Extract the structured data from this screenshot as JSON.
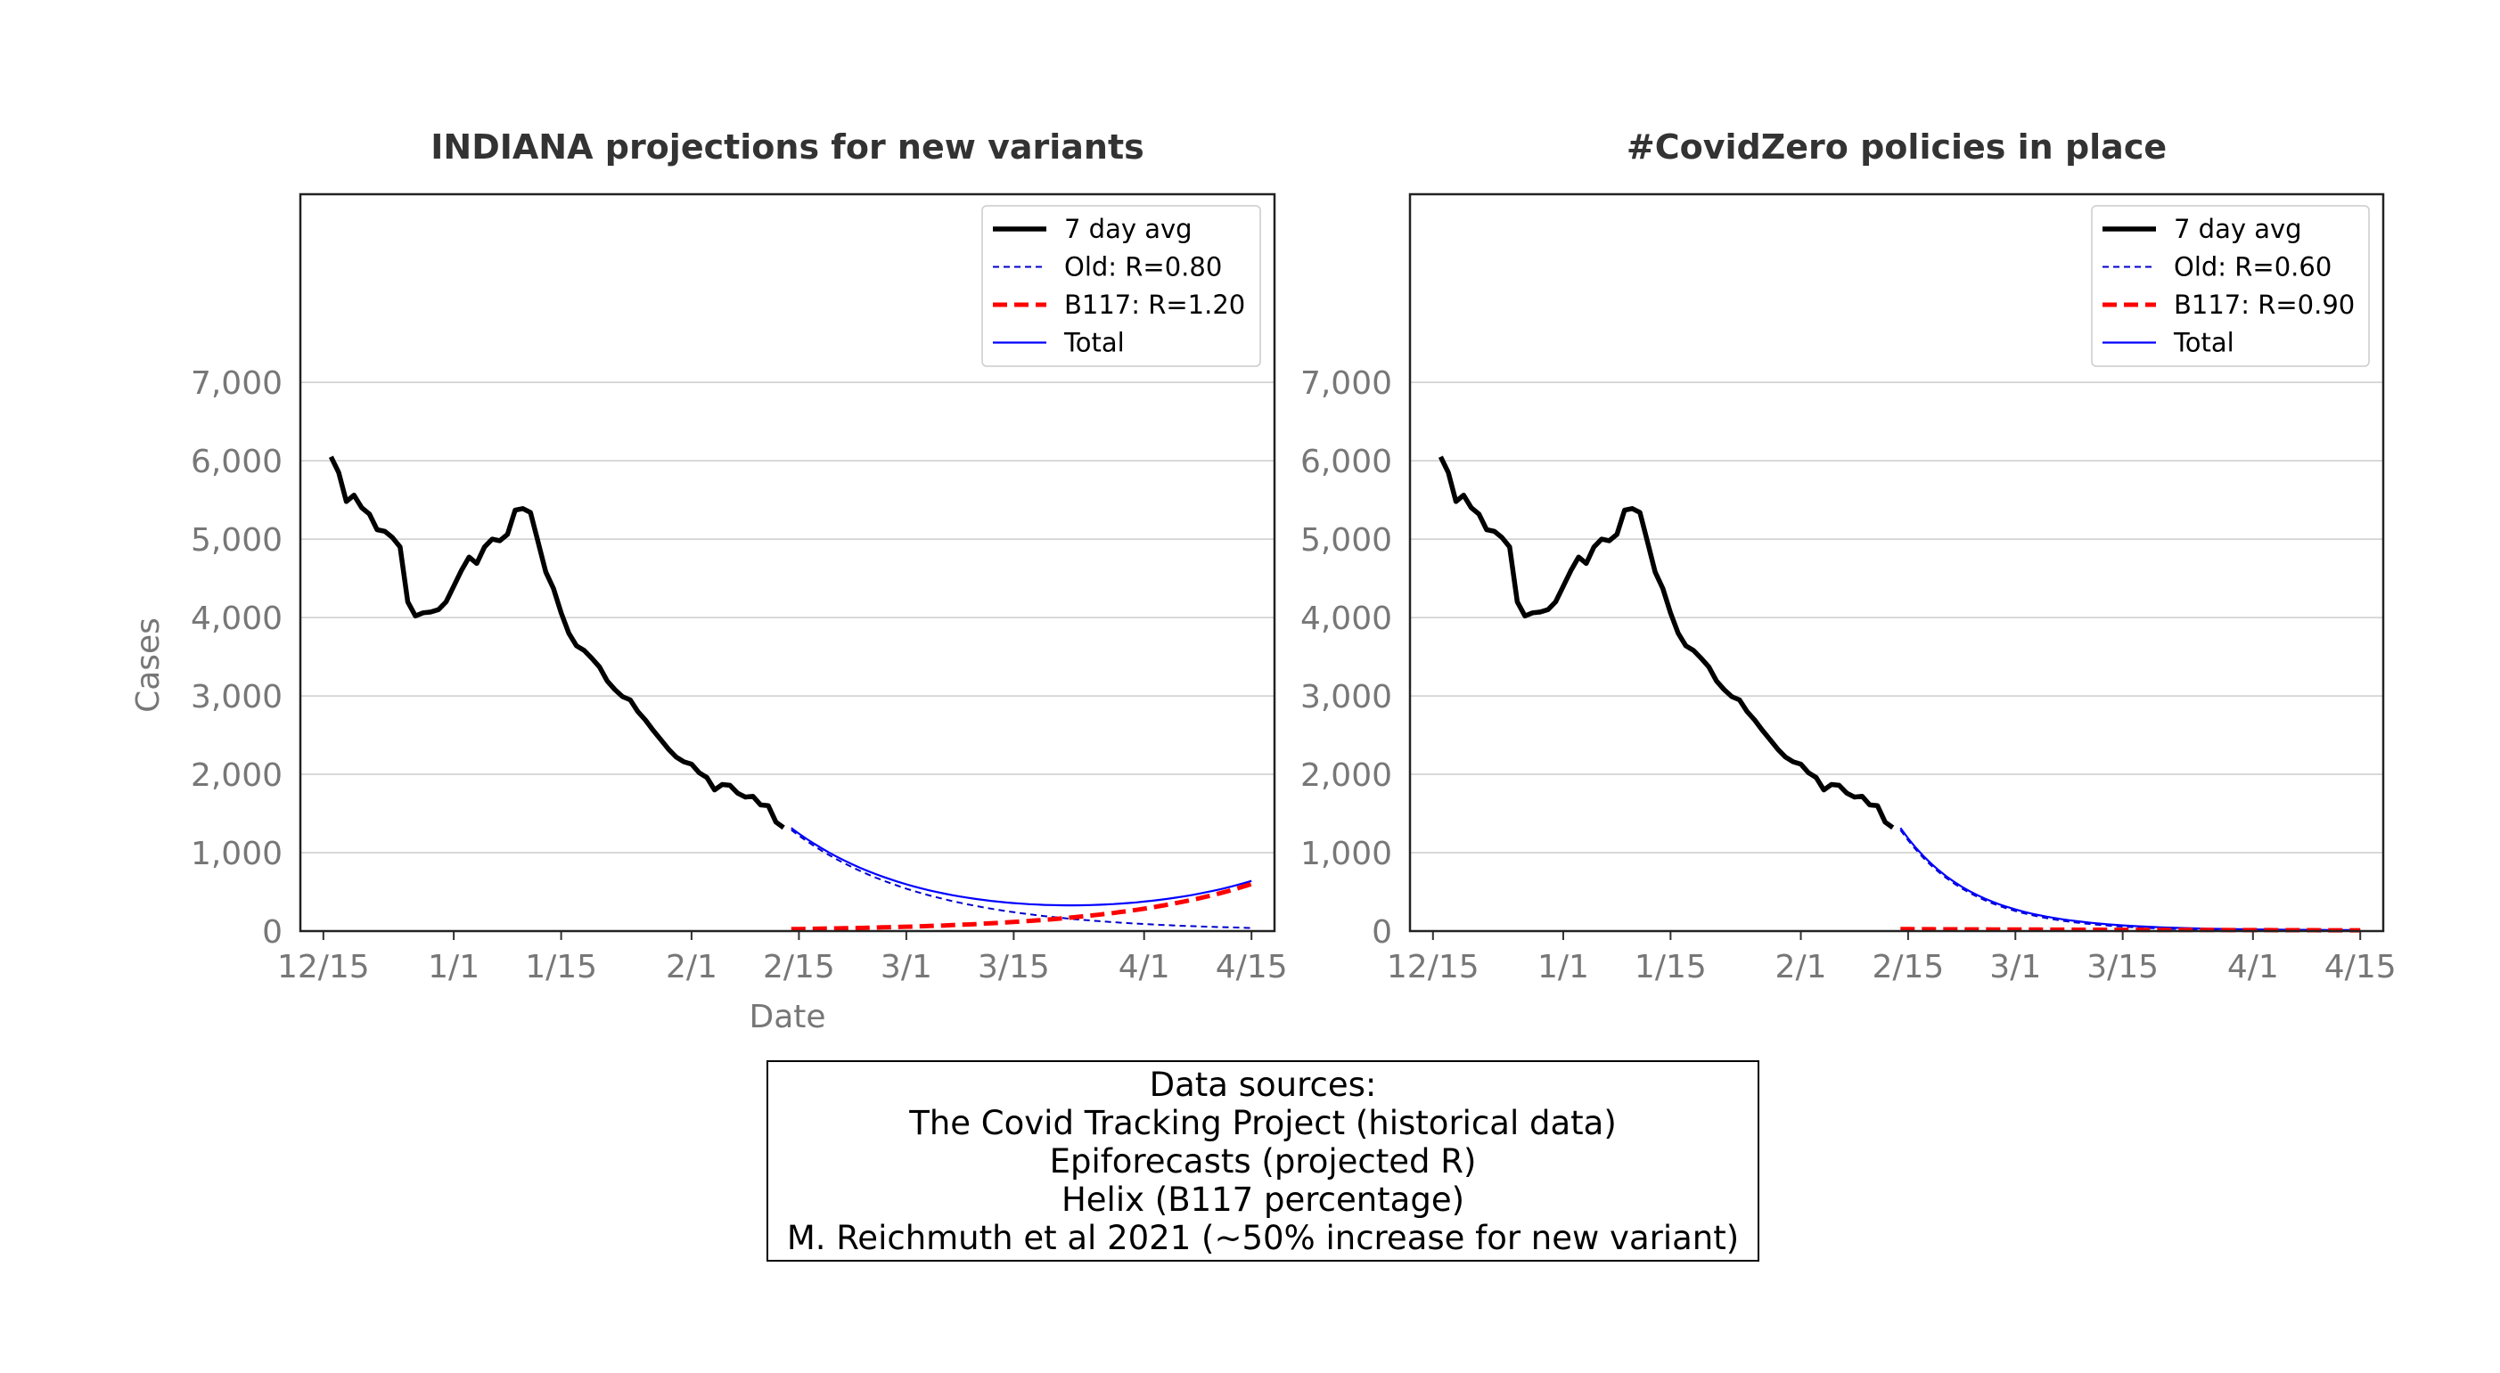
{
  "chart_data": [
    {
      "type": "line",
      "title": "INDIANA projections for new variants",
      "xlabel": "Date",
      "ylabel": "Cases",
      "xlim": [
        "2020-12-12",
        "2021-04-18"
      ],
      "ylim": [
        0,
        9400
      ],
      "x_ticks": [
        "12/15",
        "1/1",
        "1/15",
        "2/1",
        "2/15",
        "3/1",
        "3/15",
        "4/1",
        "4/15"
      ],
      "x_tick_dates": [
        "2020-12-15",
        "2021-01-01",
        "2021-01-15",
        "2021-02-01",
        "2021-02-15",
        "2021-03-01",
        "2021-03-15",
        "2021-04-01",
        "2021-04-15"
      ],
      "y_ticks": [
        "0",
        "1,000",
        "2,000",
        "3,000",
        "4,000",
        "5,000",
        "6,000",
        "7,000"
      ],
      "y_tick_values": [
        0,
        1000,
        2000,
        3000,
        4000,
        5000,
        6000,
        7000
      ],
      "grid": "horizontal",
      "legend_position": "top-right",
      "series": [
        {
          "name": "7 day avg",
          "color": "#000000",
          "style": "solid-thick",
          "points": [
            [
              "2020-12-16",
              6050
            ],
            [
              "2020-12-17",
              5850
            ],
            [
              "2020-12-18",
              5480
            ],
            [
              "2020-12-19",
              5560
            ],
            [
              "2020-12-20",
              5400
            ],
            [
              "2020-12-21",
              5320
            ],
            [
              "2020-12-22",
              5120
            ],
            [
              "2020-12-23",
              5100
            ],
            [
              "2020-12-24",
              5020
            ],
            [
              "2020-12-25",
              4900
            ],
            [
              "2020-12-26",
              4200
            ],
            [
              "2020-12-27",
              4020
            ],
            [
              "2020-12-28",
              4060
            ],
            [
              "2020-12-29",
              4070
            ],
            [
              "2020-12-30",
              4100
            ],
            [
              "2020-12-31",
              4200
            ],
            [
              "2021-01-01",
              4400
            ],
            [
              "2021-01-02",
              4600
            ],
            [
              "2021-01-03",
              4770
            ],
            [
              "2021-01-04",
              4690
            ],
            [
              "2021-01-05",
              4900
            ],
            [
              "2021-01-06",
              5000
            ],
            [
              "2021-01-07",
              4980
            ],
            [
              "2021-01-08",
              5060
            ],
            [
              "2021-01-09",
              5370
            ],
            [
              "2021-01-10",
              5390
            ],
            [
              "2021-01-11",
              5340
            ],
            [
              "2021-01-12",
              4960
            ],
            [
              "2021-01-13",
              4580
            ],
            [
              "2021-01-14",
              4370
            ],
            [
              "2021-01-15",
              4060
            ],
            [
              "2021-01-16",
              3800
            ],
            [
              "2021-01-17",
              3640
            ],
            [
              "2021-01-18",
              3580
            ],
            [
              "2021-01-19",
              3480
            ],
            [
              "2021-01-20",
              3370
            ],
            [
              "2021-01-21",
              3190
            ],
            [
              "2021-01-22",
              3080
            ],
            [
              "2021-01-23",
              2990
            ],
            [
              "2021-01-24",
              2950
            ],
            [
              "2021-01-25",
              2800
            ],
            [
              "2021-01-26",
              2690
            ],
            [
              "2021-01-27",
              2560
            ],
            [
              "2021-01-28",
              2440
            ],
            [
              "2021-01-29",
              2320
            ],
            [
              "2021-01-30",
              2220
            ],
            [
              "2021-01-31",
              2160
            ],
            [
              "2021-02-01",
              2130
            ],
            [
              "2021-02-02",
              2020
            ],
            [
              "2021-02-03",
              1960
            ],
            [
              "2021-02-04",
              1800
            ],
            [
              "2021-02-05",
              1870
            ],
            [
              "2021-02-06",
              1860
            ],
            [
              "2021-02-07",
              1760
            ],
            [
              "2021-02-08",
              1710
            ],
            [
              "2021-02-09",
              1720
            ],
            [
              "2021-02-10",
              1610
            ],
            [
              "2021-02-11",
              1600
            ],
            [
              "2021-02-12",
              1390
            ],
            [
              "2021-02-13",
              1320
            ]
          ]
        },
        {
          "name": "Old: R=0.80",
          "color": "#0000cc",
          "style": "dashed-thin",
          "start": "2021-02-14",
          "end": "2021-04-15",
          "start_value": 1290,
          "end_value": 40
        },
        {
          "name": "B117: R=1.20",
          "color": "#ff0000",
          "style": "dashed-thick",
          "start": "2021-02-14",
          "end": "2021-04-15",
          "start_value": 25,
          "end_value": 600
        },
        {
          "name": "Total",
          "color": "#0000ff",
          "style": "solid-thin",
          "note": "Old + B117"
        }
      ]
    },
    {
      "type": "line",
      "title": "#CovidZero policies in place",
      "xlabel": "",
      "ylabel": "",
      "xlim": [
        "2020-12-12",
        "2021-04-18"
      ],
      "ylim": [
        0,
        9400
      ],
      "x_ticks": [
        "12/15",
        "1/1",
        "1/15",
        "2/1",
        "2/15",
        "3/1",
        "3/15",
        "4/1",
        "4/15"
      ],
      "x_tick_dates": [
        "2020-12-15",
        "2021-01-01",
        "2021-01-15",
        "2021-02-01",
        "2021-02-15",
        "2021-03-01",
        "2021-03-15",
        "2021-04-01",
        "2021-04-15"
      ],
      "y_ticks": [
        "0",
        "1,000",
        "2,000",
        "3,000",
        "4,000",
        "5,000",
        "6,000",
        "7,000"
      ],
      "y_tick_values": [
        0,
        1000,
        2000,
        3000,
        4000,
        5000,
        6000,
        7000
      ],
      "grid": "horizontal",
      "legend_position": "top-right",
      "series": [
        {
          "name": "7 day avg",
          "color": "#000000",
          "style": "solid-thick",
          "same_as_panel": 0
        },
        {
          "name": "Old: R=0.60",
          "color": "#0000cc",
          "style": "dashed-thin",
          "start": "2021-02-14",
          "end": "2021-04-15",
          "start_value": 1290,
          "end_value": 2
        },
        {
          "name": "B117: R=0.90",
          "color": "#ff0000",
          "style": "dashed-thick",
          "start": "2021-02-14",
          "end": "2021-04-15",
          "start_value": 25,
          "end_value": 10
        },
        {
          "name": "Total",
          "color": "#0000ff",
          "style": "solid-thin",
          "note": "Old + B117"
        }
      ]
    }
  ],
  "sources": {
    "lines": [
      "Data sources:",
      "The Covid Tracking Project (historical data)",
      "Epiforecasts (projected R)",
      "Helix (B117 percentage)",
      "M. Reichmuth et al 2021 (~50% increase for new variant)"
    ]
  }
}
